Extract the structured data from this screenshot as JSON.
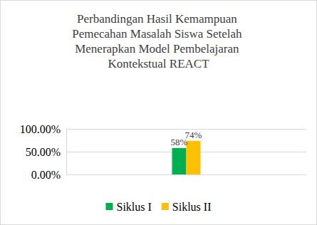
{
  "chart_data": {
    "type": "bar",
    "title": "Perbandingan Hasil Kemampuan Pemecahan Masalah Siswa Setelah Menerapkan Model Pembelajaran Kontekstual REACT",
    "categories": [
      null
    ],
    "series": [
      {
        "name": "Siklus I",
        "color": "#00b050",
        "values": [
          58
        ],
        "value_labels": [
          "58%"
        ]
      },
      {
        "name": "Siklus II",
        "color": "#ffc000",
        "values": [
          74
        ],
        "value_labels": [
          "74%"
        ]
      }
    ],
    "ylim": [
      0,
      100
    ],
    "yticks": [
      {
        "value": 0,
        "label": "0.00%"
      },
      {
        "value": 50,
        "label": "50.00%"
      },
      {
        "value": 100,
        "label": "100.00%"
      }
    ],
    "grid": true,
    "legend": "bottom",
    "data_labels": true
  }
}
